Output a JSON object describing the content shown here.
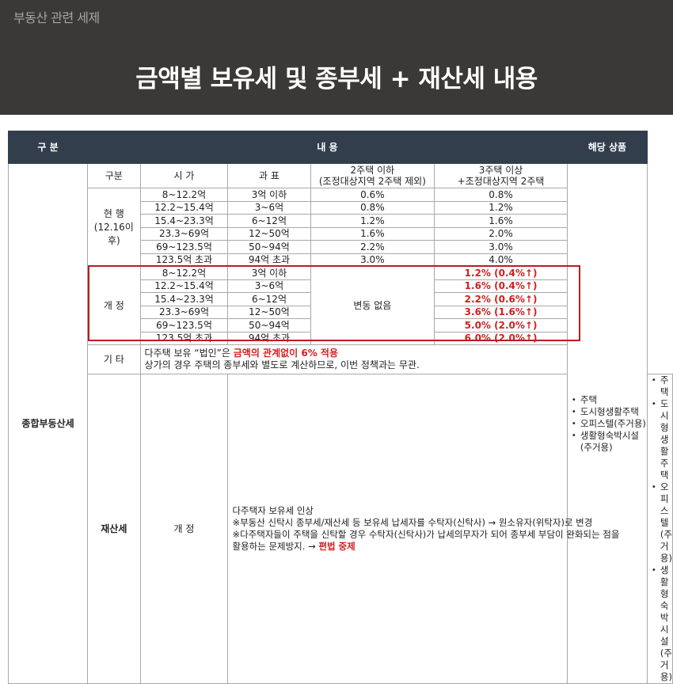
{
  "header": {
    "subtitle": "부동산 관련 세제",
    "title": "금액별 보유세 및 종부세 + 재산세 내용"
  },
  "table": {
    "head": {
      "category": "구 분",
      "content": "내 용",
      "products": "해당 상품"
    },
    "subhead": {
      "group": "구분",
      "price": "시 가",
      "base": "과 표",
      "two_line1": "2주택 이하",
      "two_line2": "(조정대상지역 2주택 제외)",
      "three_line1": "3주택 이상",
      "three_line2": "+조정대상지역 2주택"
    },
    "comprehensive": {
      "label": "종합부동산세",
      "current": {
        "label_line1": "현 행",
        "label_line2": "(12.16이후)",
        "rows": [
          {
            "price": "8~12.2억",
            "base": "3억 이하",
            "two": "0.6%",
            "three": "0.8%"
          },
          {
            "price": "12.2~15.4억",
            "base": "3~6억",
            "two": "0.8%",
            "three": "1.2%"
          },
          {
            "price": "15.4~23.3억",
            "base": "6~12억",
            "two": "1.2%",
            "three": "1.6%"
          },
          {
            "price": "23.3~69억",
            "base": "12~50억",
            "two": "1.6%",
            "three": "2.0%"
          },
          {
            "price": "69~123.5억",
            "base": "50~94억",
            "two": "2.2%",
            "three": "3.0%"
          },
          {
            "price": "123.5억 초과",
            "base": "94억 초과",
            "two": "3.0%",
            "three": "4.0%"
          }
        ]
      },
      "revised": {
        "label": "개 정",
        "two_note": "변동 없음",
        "rows": [
          {
            "price": "8~12.2억",
            "base": "3억 이하",
            "three": "1.2% (0.4%↑)"
          },
          {
            "price": "12.2~15.4억",
            "base": "3~6억",
            "three": "1.6% (0.4%↑)"
          },
          {
            "price": "15.4~23.3억",
            "base": "6~12억",
            "three": "2.2% (0.6%↑)"
          },
          {
            "price": "23.3~69억",
            "base": "12~50억",
            "three": "3.6% (1.6%↑)"
          },
          {
            "price": "69~123.5억",
            "base": "50~94억",
            "three": "5.0% (2.0%↑)"
          },
          {
            "price": "123.5억 초과",
            "base": "94억 초과",
            "three": "6.0% (2.0%↑)"
          }
        ]
      },
      "other": {
        "label": "기 타",
        "line1_a": "다주택 보유 “법인”은 ",
        "line1_b": "금액의 관계없이 6% 적용",
        "line2": "상가의 경우 주택의 종부세와 별도로 계산하므로, 이번 정책과는 무관."
      },
      "products": [
        "주택",
        "도시형생활주택",
        "오피스텔(주거용)",
        "생활형숙박시설 (주거용)"
      ]
    },
    "property": {
      "label": "재산세",
      "sub_label": "개 정",
      "line1": "다주택자 보유세 인상",
      "line2": "※부동산 신탁시 종부세/재산세 등 보유세 납세자를 수탁자(신탁사) → 원소유자(위탁자)로 변경",
      "line3": "※다주택자들이 주택을 신탁할 경우 수탁자(신탁사)가 납세의무자가 되어 종부세 부담이 완화되는 점을",
      "line4_a": "활용하는  문제방지. → ",
      "line4_b": "편법 중제",
      "products": [
        "주택",
        "도시형생활주택",
        "오피스텔(주거용)",
        "생활형숙박시설 (주거용)"
      ]
    }
  },
  "colors": {
    "header_bg": "#3b3937",
    "table_head_bg": "#333e4d",
    "accent_red": "#d21f1f"
  }
}
